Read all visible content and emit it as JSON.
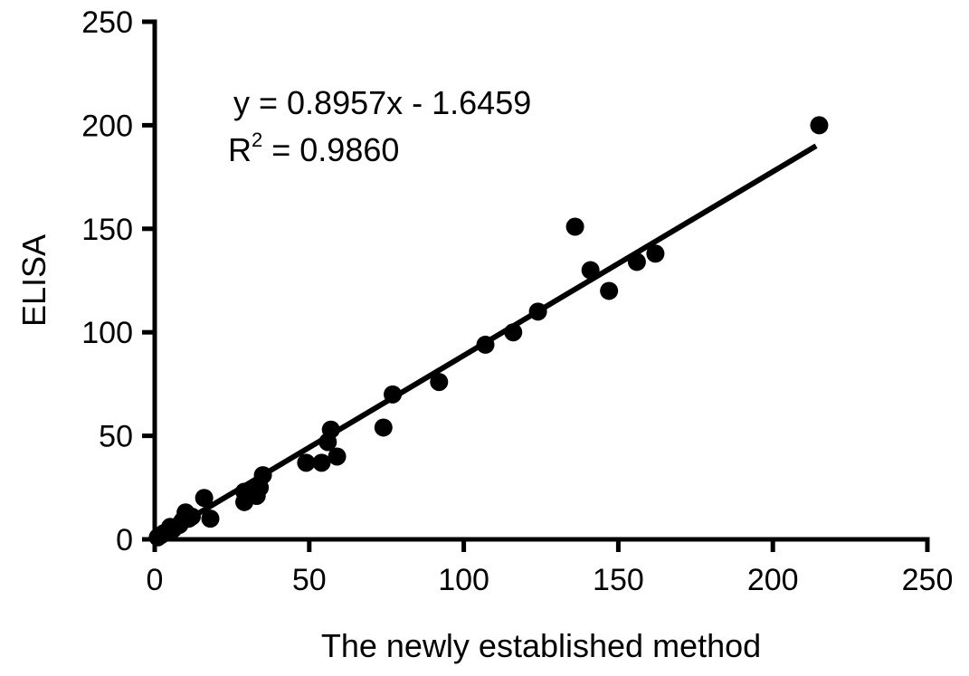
{
  "chart_data": {
    "type": "scatter",
    "title": "",
    "xlabel": "The newly established method",
    "ylabel": "ELISA",
    "xlim": [
      0,
      250
    ],
    "ylim": [
      0,
      250
    ],
    "xticks": [
      "0",
      "50",
      "100",
      "150",
      "200",
      "250"
    ],
    "yticks": [
      "0",
      "50",
      "100",
      "150",
      "200",
      "250"
    ],
    "grid": false,
    "legend": "none",
    "annotation": {
      "equation": "y = 0.8957x - 1.6459",
      "r2_label": "R",
      "r2_superscript": "2",
      "r2_value": " = 0.9860"
    },
    "fit": {
      "slope": 0.8957,
      "intercept": -1.6459,
      "x_range": [
        0,
        214
      ]
    },
    "series": [
      {
        "marker_color": "#000000",
        "points": [
          {
            "x": 1,
            "y": 1
          },
          {
            "x": 2,
            "y": 2
          },
          {
            "x": 3,
            "y": 3
          },
          {
            "x": 5,
            "y": 6
          },
          {
            "x": 6,
            "y": 5
          },
          {
            "x": 8,
            "y": 7
          },
          {
            "x": 9,
            "y": 9
          },
          {
            "x": 10,
            "y": 13
          },
          {
            "x": 11,
            "y": 10
          },
          {
            "x": 12,
            "y": 11
          },
          {
            "x": 16,
            "y": 20
          },
          {
            "x": 18,
            "y": 10
          },
          {
            "x": 29,
            "y": 23
          },
          {
            "x": 29,
            "y": 18
          },
          {
            "x": 33,
            "y": 21
          },
          {
            "x": 34,
            "y": 25
          },
          {
            "x": 35,
            "y": 31
          },
          {
            "x": 49,
            "y": 37
          },
          {
            "x": 54,
            "y": 37
          },
          {
            "x": 56,
            "y": 47
          },
          {
            "x": 57,
            "y": 53
          },
          {
            "x": 59,
            "y": 40
          },
          {
            "x": 74,
            "y": 54
          },
          {
            "x": 77,
            "y": 70
          },
          {
            "x": 92,
            "y": 76
          },
          {
            "x": 107,
            "y": 94
          },
          {
            "x": 116,
            "y": 100
          },
          {
            "x": 124,
            "y": 110
          },
          {
            "x": 136,
            "y": 151
          },
          {
            "x": 141,
            "y": 130
          },
          {
            "x": 147,
            "y": 120
          },
          {
            "x": 156,
            "y": 134
          },
          {
            "x": 162,
            "y": 138
          },
          {
            "x": 215,
            "y": 200
          }
        ]
      }
    ]
  }
}
